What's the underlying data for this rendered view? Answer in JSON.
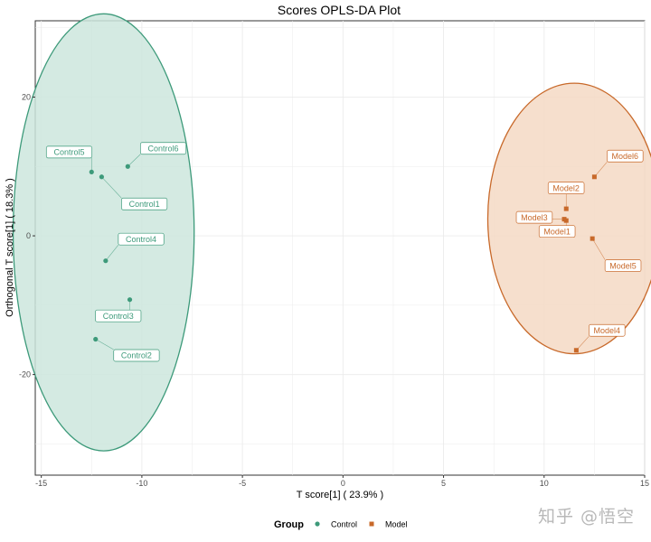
{
  "chart_data": {
    "type": "scatter",
    "title": "Scores OPLS-DA Plot",
    "xlabel": "T score[1] ( 23.9% )",
    "ylabel": "Orthogonal T score[1] ( 18.3% )",
    "xlim": [
      -15.3,
      15
    ],
    "ylim": [
      -34.5,
      31
    ],
    "x_ticks": [
      -15,
      -10,
      -5,
      0,
      5,
      10,
      15
    ],
    "y_ticks": [
      -20,
      0,
      20
    ],
    "grid": true,
    "legend_position": "bottom",
    "legend_title": "Group",
    "series": [
      {
        "name": "Control",
        "color": "#3d9a7a",
        "fill": "#cde6dd",
        "ellipse": {
          "cx": -11.9,
          "cy": 0.5,
          "rx": 4.5,
          "ry": 31.5
        },
        "points": [
          {
            "label": "Control1",
            "x": -12.0,
            "y": 8.5
          },
          {
            "label": "Control2",
            "x": -12.3,
            "y": -14.9
          },
          {
            "label": "Control3",
            "x": -10.6,
            "y": -9.2
          },
          {
            "label": "Control4",
            "x": -11.8,
            "y": -3.6
          },
          {
            "label": "Control5",
            "x": -12.5,
            "y": 9.2
          },
          {
            "label": "Control6",
            "x": -10.7,
            "y": 10.0
          }
        ]
      },
      {
        "name": "Model",
        "color": "#c8692a",
        "fill": "#f4d9c4",
        "ellipse": {
          "cx": 11.5,
          "cy": 2.5,
          "rx": 4.3,
          "ry": 19.5
        },
        "points": [
          {
            "label": "Model1",
            "x": 11.1,
            "y": 2.2
          },
          {
            "label": "Model2",
            "x": 11.1,
            "y": 3.9
          },
          {
            "label": "Model3",
            "x": 11.0,
            "y": 2.4
          },
          {
            "label": "Model4",
            "x": 11.6,
            "y": -16.5
          },
          {
            "label": "Model5",
            "x": 12.4,
            "y": -0.4
          },
          {
            "label": "Model6",
            "x": 12.5,
            "y": 8.5
          }
        ]
      }
    ]
  },
  "watermark": "知乎 @悟空"
}
